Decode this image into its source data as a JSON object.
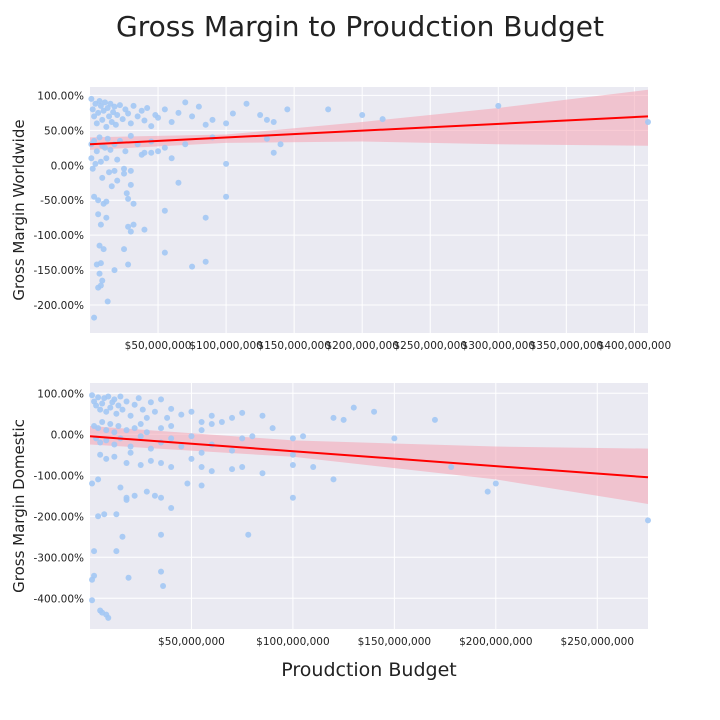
{
  "figure": {
    "title": "Gross Margin to Proudction Budget",
    "xlabel": "Proudction Budget"
  },
  "colors": {
    "panel_bg": "#eaeaf2",
    "grid": "#ffffff",
    "points": "#a3c8f4",
    "fit_line": "#ff0000",
    "ci_band": "#f4a3b2"
  },
  "chart_data": [
    {
      "type": "scatter",
      "ylabel": "Gross Margin Worldwide",
      "xlim": [
        0,
        410000000
      ],
      "ylim": [
        -240,
        112
      ],
      "xticks": [
        50000000,
        100000000,
        150000000,
        200000000,
        250000000,
        300000000,
        350000000,
        400000000
      ],
      "xtick_labels": [
        "$50,000,000",
        "$100,000,000",
        "$150,000,000",
        "$200,000,000",
        "$250,000,000",
        "$300,000,000",
        "$350,000,000",
        "$400,000,000"
      ],
      "yticks": [
        100,
        50,
        0,
        -50,
        -100,
        -150,
        -200
      ],
      "ytick_labels": [
        "100.00%",
        "50.00%",
        "0.00%",
        "-50.00%",
        "-100.00%",
        "-150.00%",
        "-200.00%"
      ],
      "grid": true,
      "regression": {
        "line": [
          [
            0,
            30
          ],
          [
            410000000,
            70
          ]
        ],
        "ci_upper": [
          [
            0,
            40
          ],
          [
            100000000,
            44
          ],
          [
            200000000,
            62
          ],
          [
            300000000,
            82
          ],
          [
            410000000,
            108
          ]
        ],
        "ci_lower": [
          [
            0,
            22
          ],
          [
            100000000,
            32
          ],
          [
            200000000,
            34
          ],
          [
            300000000,
            30
          ],
          [
            410000000,
            28
          ]
        ]
      },
      "points": [
        [
          1000000,
          95
        ],
        [
          2000000,
          80
        ],
        [
          3000000,
          70
        ],
        [
          4000000,
          88
        ],
        [
          5000000,
          60
        ],
        [
          6000000,
          75
        ],
        [
          7000000,
          92
        ],
        [
          8000000,
          85
        ],
        [
          9000000,
          65
        ],
        [
          10000000,
          78
        ],
        [
          11000000,
          90
        ],
        [
          12000000,
          55
        ],
        [
          13000000,
          82
        ],
        [
          14000000,
          70
        ],
        [
          15000000,
          88
        ],
        [
          16000000,
          62
        ],
        [
          17000000,
          76
        ],
        [
          18000000,
          84
        ],
        [
          19000000,
          58
        ],
        [
          20000000,
          72
        ],
        [
          22000000,
          86
        ],
        [
          24000000,
          66
        ],
        [
          26000000,
          80
        ],
        [
          28000000,
          74
        ],
        [
          30000000,
          60
        ],
        [
          32000000,
          85
        ],
        [
          35000000,
          70
        ],
        [
          38000000,
          78
        ],
        [
          40000000,
          64
        ],
        [
          42000000,
          82
        ],
        [
          45000000,
          56
        ],
        [
          48000000,
          72
        ],
        [
          50000000,
          68
        ],
        [
          55000000,
          80
        ],
        [
          60000000,
          62
        ],
        [
          65000000,
          75
        ],
        [
          70000000,
          90
        ],
        [
          75000000,
          70
        ],
        [
          80000000,
          84
        ],
        [
          85000000,
          58
        ],
        [
          90000000,
          65
        ],
        [
          100000000,
          60
        ],
        [
          105000000,
          74
        ],
        [
          115000000,
          88
        ],
        [
          125000000,
          72
        ],
        [
          130000000,
          65
        ],
        [
          135000000,
          62
        ],
        [
          145000000,
          80
        ],
        [
          175000000,
          80
        ],
        [
          200000000,
          72
        ],
        [
          215000000,
          66
        ],
        [
          300000000,
          85
        ],
        [
          410000000,
          62
        ],
        [
          1000000,
          30
        ],
        [
          3000000,
          35
        ],
        [
          5000000,
          20
        ],
        [
          7000000,
          40
        ],
        [
          9000000,
          28
        ],
        [
          11000000,
          25
        ],
        [
          13000000,
          38
        ],
        [
          15000000,
          22
        ],
        [
          18000000,
          30
        ],
        [
          22000000,
          35
        ],
        [
          26000000,
          20
        ],
        [
          30000000,
          42
        ],
        [
          35000000,
          30
        ],
        [
          40000000,
          18
        ],
        [
          45000000,
          34
        ],
        [
          50000000,
          20
        ],
        [
          55000000,
          25
        ],
        [
          70000000,
          30
        ],
        [
          90000000,
          40
        ],
        [
          130000000,
          38
        ],
        [
          135000000,
          18
        ],
        [
          140000000,
          30
        ],
        [
          1000000,
          10
        ],
        [
          2000000,
          -5
        ],
        [
          4000000,
          2
        ],
        [
          8000000,
          5
        ],
        [
          12000000,
          10
        ],
        [
          20000000,
          8
        ],
        [
          25000000,
          -5
        ],
        [
          30000000,
          -8
        ],
        [
          38000000,
          15
        ],
        [
          45000000,
          18
        ],
        [
          100000000,
          2
        ],
        [
          65000000,
          -25
        ],
        [
          60000000,
          10
        ],
        [
          3000000,
          -45
        ],
        [
          6000000,
          -50
        ],
        [
          9000000,
          -18
        ],
        [
          12000000,
          -52
        ],
        [
          14000000,
          -10
        ],
        [
          16000000,
          -30
        ],
        [
          18000000,
          -8
        ],
        [
          20000000,
          -22
        ],
        [
          25000000,
          -12
        ],
        [
          27000000,
          -40
        ],
        [
          30000000,
          -28
        ],
        [
          32000000,
          -55
        ],
        [
          28000000,
          -48
        ],
        [
          100000000,
          -45
        ],
        [
          6000000,
          -70
        ],
        [
          8000000,
          -85
        ],
        [
          10000000,
          -55
        ],
        [
          12000000,
          -75
        ],
        [
          28000000,
          -88
        ],
        [
          32000000,
          -85
        ],
        [
          30000000,
          -95
        ],
        [
          40000000,
          -92
        ],
        [
          55000000,
          -65
        ],
        [
          85000000,
          -75
        ],
        [
          7000000,
          -115
        ],
        [
          10000000,
          -120
        ],
        [
          5000000,
          -142
        ],
        [
          8000000,
          -140
        ],
        [
          18000000,
          -150
        ],
        [
          25000000,
          -120
        ],
        [
          28000000,
          -142
        ],
        [
          55000000,
          -125
        ],
        [
          75000000,
          -145
        ],
        [
          85000000,
          -138
        ],
        [
          7000000,
          -155
        ],
        [
          9000000,
          -165
        ],
        [
          6000000,
          -175
        ],
        [
          8000000,
          -172
        ],
        [
          13000000,
          -195
        ],
        [
          3000000,
          -218
        ]
      ]
    },
    {
      "type": "scatter",
      "ylabel": "Gross Margin Domestic",
      "xlim": [
        0,
        275000000
      ],
      "ylim": [
        -475,
        125
      ],
      "xticks": [
        50000000,
        100000000,
        150000000,
        200000000,
        250000000
      ],
      "xtick_labels": [
        "$50,000,000",
        "$100,000,000",
        "$150,000,000",
        "$200,000,000",
        "$250,000,000"
      ],
      "yticks": [
        100,
        0,
        -100,
        -200,
        -300,
        -400
      ],
      "ytick_labels": [
        "100.00%",
        "0.00%",
        "-100.00%",
        "-200.00%",
        "-300.00%",
        "-400.00%"
      ],
      "grid": true,
      "regression": {
        "line": [
          [
            0,
            -5
          ],
          [
            275000000,
            -105
          ]
        ],
        "ci_upper": [
          [
            0,
            20
          ],
          [
            100000000,
            -15
          ],
          [
            200000000,
            -30
          ],
          [
            275000000,
            -35
          ]
        ],
        "ci_lower": [
          [
            0,
            -25
          ],
          [
            100000000,
            -55
          ],
          [
            200000000,
            -110
          ],
          [
            275000000,
            -170
          ]
        ]
      },
      "points": [
        [
          1000000,
          95
        ],
        [
          2000000,
          80
        ],
        [
          3000000,
          70
        ],
        [
          4000000,
          90
        ],
        [
          5000000,
          60
        ],
        [
          6000000,
          75
        ],
        [
          7000000,
          88
        ],
        [
          8000000,
          55
        ],
        [
          9000000,
          92
        ],
        [
          10000000,
          65
        ],
        [
          11000000,
          78
        ],
        [
          12000000,
          85
        ],
        [
          13000000,
          50
        ],
        [
          14000000,
          70
        ],
        [
          15000000,
          92
        ],
        [
          16000000,
          60
        ],
        [
          18000000,
          80
        ],
        [
          20000000,
          45
        ],
        [
          22000000,
          72
        ],
        [
          24000000,
          88
        ],
        [
          26000000,
          60
        ],
        [
          28000000,
          40
        ],
        [
          30000000,
          78
        ],
        [
          32000000,
          55
        ],
        [
          35000000,
          85
        ],
        [
          38000000,
          40
        ],
        [
          40000000,
          62
        ],
        [
          45000000,
          48
        ],
        [
          50000000,
          55
        ],
        [
          55000000,
          30
        ],
        [
          60000000,
          45
        ],
        [
          65000000,
          30
        ],
        [
          70000000,
          40
        ],
        [
          75000000,
          52
        ],
        [
          85000000,
          45
        ],
        [
          120000000,
          40
        ],
        [
          125000000,
          35
        ],
        [
          130000000,
          65
        ],
        [
          140000000,
          55
        ],
        [
          170000000,
          35
        ],
        [
          2000000,
          20
        ],
        [
          4000000,
          15
        ],
        [
          6000000,
          30
        ],
        [
          8000000,
          10
        ],
        [
          10000000,
          25
        ],
        [
          12000000,
          5
        ],
        [
          14000000,
          20
        ],
        [
          18000000,
          10
        ],
        [
          22000000,
          15
        ],
        [
          25000000,
          25
        ],
        [
          28000000,
          5
        ],
        [
          35000000,
          15
        ],
        [
          40000000,
          20
        ],
        [
          50000000,
          -5
        ],
        [
          55000000,
          10
        ],
        [
          60000000,
          25
        ],
        [
          90000000,
          15
        ],
        [
          3000000,
          -10
        ],
        [
          5000000,
          -20
        ],
        [
          8000000,
          -15
        ],
        [
          12000000,
          -25
        ],
        [
          15000000,
          -10
        ],
        [
          20000000,
          -30
        ],
        [
          25000000,
          -5
        ],
        [
          30000000,
          -35
        ],
        [
          35000000,
          -20
        ],
        [
          40000000,
          -10
        ],
        [
          45000000,
          -30
        ],
        [
          55000000,
          -45
        ],
        [
          60000000,
          -25
        ],
        [
          70000000,
          -40
        ],
        [
          75000000,
          -10
        ],
        [
          80000000,
          -5
        ],
        [
          100000000,
          -10
        ],
        [
          105000000,
          -5
        ],
        [
          150000000,
          -10
        ],
        [
          100000000,
          -50
        ],
        [
          5000000,
          -50
        ],
        [
          8000000,
          -60
        ],
        [
          12000000,
          -55
        ],
        [
          18000000,
          -70
        ],
        [
          20000000,
          -45
        ],
        [
          25000000,
          -75
        ],
        [
          30000000,
          -65
        ],
        [
          35000000,
          -70
        ],
        [
          40000000,
          -80
        ],
        [
          50000000,
          -60
        ],
        [
          55000000,
          -80
        ],
        [
          60000000,
          -90
        ],
        [
          70000000,
          -85
        ],
        [
          75000000,
          -80
        ],
        [
          85000000,
          -95
        ],
        [
          100000000,
          -75
        ],
        [
          110000000,
          -80
        ],
        [
          120000000,
          -110
        ],
        [
          178000000,
          -80
        ],
        [
          200000000,
          -120
        ],
        [
          196000000,
          -140
        ],
        [
          1000000,
          -120
        ],
        [
          4000000,
          -110
        ],
        [
          15000000,
          -130
        ],
        [
          18000000,
          -155
        ],
        [
          22000000,
          -150
        ],
        [
          28000000,
          -140
        ],
        [
          32000000,
          -150
        ],
        [
          35000000,
          -155
        ],
        [
          40000000,
          -180
        ],
        [
          48000000,
          -120
        ],
        [
          55000000,
          -125
        ],
        [
          100000000,
          -155
        ],
        [
          4000000,
          -200
        ],
        [
          7000000,
          -195
        ],
        [
          13000000,
          -195
        ],
        [
          18000000,
          -160
        ],
        [
          16000000,
          -250
        ],
        [
          35000000,
          -245
        ],
        [
          78000000,
          -245
        ],
        [
          275000000,
          -210
        ],
        [
          2000000,
          -285
        ],
        [
          13000000,
          -285
        ],
        [
          19000000,
          -350
        ],
        [
          35000000,
          -335
        ],
        [
          36000000,
          -370
        ],
        [
          2000000,
          -345
        ],
        [
          1000000,
          -355
        ],
        [
          8000000,
          -440
        ],
        [
          5000000,
          -430
        ],
        [
          6000000,
          -435
        ],
        [
          1000000,
          -405
        ],
        [
          9000000,
          -448
        ]
      ]
    }
  ]
}
